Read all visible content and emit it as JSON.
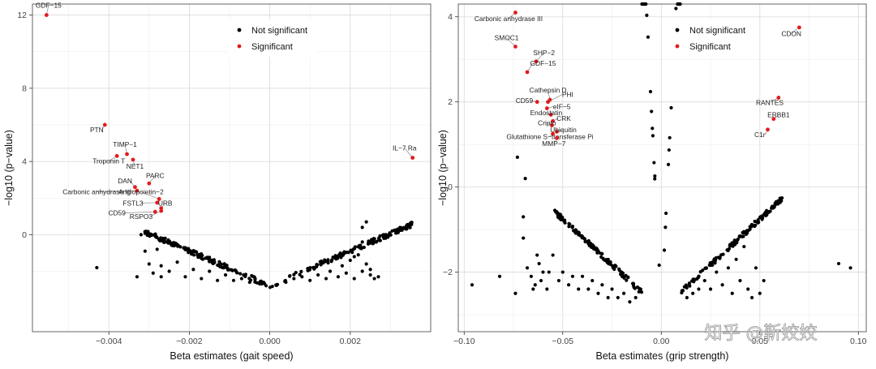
{
  "watermark": "知乎 @靳姣姣",
  "colors": {
    "not_significant": "#000000",
    "significant": "#e41a1c"
  },
  "chart_data": [
    {
      "type": "scatter",
      "subtype": "volcano",
      "xlabel": "Beta estimates (gait speed)",
      "ylabel": "−log10 (p−value)",
      "xlim": [
        -0.0059,
        0.004
      ],
      "ylim": [
        -5.3,
        12.6
      ],
      "xticks": [
        -0.004,
        -0.002,
        0.0,
        0.002
      ],
      "xtick_labels": [
        "−0.004",
        "−0.002",
        "0.000",
        "0.002"
      ],
      "yticks": [
        0,
        4,
        8,
        12
      ],
      "ytick_labels": [
        "0",
        "4",
        "8",
        "12"
      ],
      "legend": {
        "position": "top-center",
        "entries": [
          "Not significant",
          "Significant"
        ]
      },
      "arms": {
        "apex": [
          0.0,
          -2.8
        ],
        "coef": 950,
        "n": 280,
        "seed": 11
      },
      "scatter": [
        [
          -0.0043,
          -1.8
        ],
        [
          -0.0033,
          -2.3
        ],
        [
          -0.0032,
          0.0
        ],
        [
          -0.0031,
          -0.9
        ],
        [
          -0.003,
          -1.6
        ],
        [
          -0.0029,
          -2.1
        ],
        [
          -0.0028,
          -0.8
        ],
        [
          -0.0027,
          -1.7
        ],
        [
          -0.0027,
          -2.3
        ],
        [
          -0.0026,
          -0.2
        ],
        [
          -0.0025,
          -2.0
        ],
        [
          -0.0023,
          -1.5
        ],
        [
          -0.0021,
          -2.3
        ],
        [
          -0.0019,
          -1.9
        ],
        [
          -0.0017,
          -2.4
        ],
        [
          -0.0015,
          -2.0
        ],
        [
          -0.0013,
          -2.5
        ],
        [
          -0.0011,
          -2.2
        ],
        [
          -0.0009,
          -2.5
        ],
        [
          -0.0007,
          -2.4
        ],
        [
          -0.0005,
          -2.6
        ],
        [
          0.0004,
          -2.6
        ],
        [
          0.0006,
          -2.4
        ],
        [
          0.0008,
          -2.3
        ],
        [
          0.001,
          -2.5
        ],
        [
          0.0012,
          -2.2
        ],
        [
          0.0014,
          -2.4
        ],
        [
          0.0015,
          -2.0
        ],
        [
          0.0017,
          -2.3
        ],
        [
          0.0018,
          -1.7
        ],
        [
          0.0019,
          -2.1
        ],
        [
          0.002,
          -1.4
        ],
        [
          0.0021,
          -2.4
        ],
        [
          0.0022,
          -1.1
        ],
        [
          0.0023,
          -0.4
        ],
        [
          0.0023,
          0.4
        ],
        [
          0.0024,
          -1.6
        ],
        [
          0.0025,
          -2.2
        ],
        [
          0.0026,
          -2.4
        ],
        [
          0.0027,
          -2.3
        ],
        [
          0.0024,
          0.7
        ],
        [
          0.0025,
          -1.9
        ],
        [
          0.0023,
          -2.0
        ],
        [
          0.0021,
          -1.2
        ]
      ],
      "significant": [
        {
          "label": "GDF−15",
          "x": -0.00555,
          "y": 12.0,
          "lx": -0.0055,
          "ly": 12.4
        },
        {
          "label": "IL−7 Ra",
          "x": 0.00355,
          "y": 4.2,
          "lx": 0.00335,
          "ly": 4.6
        },
        {
          "label": "PTN",
          "x": -0.0041,
          "y": 6.0,
          "lx": -0.0043,
          "ly": 5.6
        },
        {
          "label": "TIMP−1",
          "x": -0.00355,
          "y": 4.4,
          "lx": -0.0036,
          "ly": 4.8
        },
        {
          "label": "Troponin T",
          "x": -0.0038,
          "y": 4.3,
          "lx": -0.004,
          "ly": 3.9
        },
        {
          "label": "NET1",
          "x": -0.0034,
          "y": 4.1,
          "lx": -0.00335,
          "ly": 3.6
        },
        {
          "label": "PARC",
          "x": -0.003,
          "y": 2.8,
          "lx": -0.00285,
          "ly": 3.1
        },
        {
          "label": "DAN",
          "x": -0.00335,
          "y": 2.6,
          "lx": -0.0036,
          "ly": 2.8
        },
        {
          "label": "Carbonic anhydrase III",
          "x": -0.0033,
          "y": 2.4,
          "lx": -0.0043,
          "ly": 2.2
        },
        {
          "label": "Angiopoietin−2",
          "x": -0.00275,
          "y": 1.95,
          "lx": -0.0032,
          "ly": 2.2
        },
        {
          "label": "FSTL3",
          "x": -0.0028,
          "y": 1.75,
          "lx": -0.0034,
          "ly": 1.6
        },
        {
          "label": "URB",
          "x": -0.0027,
          "y": 1.45,
          "lx": -0.0026,
          "ly": 1.6
        },
        {
          "label": "CD59",
          "x": -0.00285,
          "y": 1.25,
          "lx": -0.0038,
          "ly": 1.05
        },
        {
          "label": "RSPO3",
          "x": -0.0027,
          "y": 1.3,
          "lx": -0.0032,
          "ly": 0.85
        }
      ]
    },
    {
      "type": "scatter",
      "subtype": "volcano",
      "xlabel": "Beta estimates (grip strength)",
      "ylabel": "−log10 (p−value)",
      "xlim": [
        -0.103,
        0.104
      ],
      "ylim": [
        -3.4,
        4.3
      ],
      "xticks": [
        -0.1,
        -0.05,
        0.0,
        0.05,
        0.1
      ],
      "xtick_labels": [
        "−0.10",
        "−0.05",
        "0.00",
        "0.05",
        "0.10"
      ],
      "yticks": [
        -2,
        0,
        2,
        4
      ],
      "ytick_labels": [
        "−2",
        "0",
        "2",
        "4"
      ],
      "legend": {
        "position": "top-center",
        "entries": [
          "Not significant",
          "Significant"
        ]
      },
      "arms": {
        "apex": [
          0.0,
          -2.9
        ],
        "coef": 1100,
        "n": 300,
        "seed": 29
      },
      "scatter": [
        [
          -0.096,
          -2.3
        ],
        [
          -0.082,
          -2.1
        ],
        [
          -0.074,
          -2.5
        ],
        [
          -0.073,
          0.7
        ],
        [
          -0.07,
          -0.7
        ],
        [
          -0.07,
          -1.2
        ],
        [
          -0.069,
          0.2
        ],
        [
          -0.068,
          -1.9
        ],
        [
          -0.066,
          -2.1
        ],
        [
          -0.065,
          -2.4
        ],
        [
          -0.064,
          -2.3
        ],
        [
          -0.063,
          -1.6
        ],
        [
          -0.062,
          -1.8
        ],
        [
          -0.061,
          -2.2
        ],
        [
          -0.06,
          -2.0
        ],
        [
          -0.058,
          -2.4
        ],
        [
          -0.057,
          -2.0
        ],
        [
          -0.055,
          -1.6
        ],
        [
          -0.052,
          -2.2
        ],
        [
          -0.05,
          -2.0
        ],
        [
          -0.047,
          -2.3
        ],
        [
          -0.045,
          -2.1
        ],
        [
          -0.042,
          -2.4
        ],
        [
          -0.04,
          -2.1
        ],
        [
          -0.037,
          -2.4
        ],
        [
          -0.035,
          -2.2
        ],
        [
          -0.032,
          -2.5
        ],
        [
          -0.03,
          -2.3
        ],
        [
          -0.027,
          -2.6
        ],
        [
          -0.025,
          -2.4
        ],
        [
          -0.022,
          -2.6
        ],
        [
          -0.019,
          -2.5
        ],
        [
          -0.016,
          -2.7
        ],
        [
          -0.013,
          -2.6
        ],
        [
          0.013,
          -2.6
        ],
        [
          0.016,
          -2.5
        ],
        [
          0.019,
          -2.4
        ],
        [
          0.022,
          -2.2
        ],
        [
          0.025,
          -2.4
        ],
        [
          0.028,
          -2.0
        ],
        [
          0.031,
          -2.3
        ],
        [
          0.034,
          -1.9
        ],
        [
          0.036,
          -2.5
        ],
        [
          0.038,
          -1.7
        ],
        [
          0.04,
          -2.2
        ],
        [
          0.042,
          -1.4
        ],
        [
          0.044,
          -2.4
        ],
        [
          0.046,
          -2.6
        ],
        [
          0.048,
          -1.9
        ],
        [
          0.05,
          -2.5
        ],
        [
          0.052,
          -2.2
        ],
        [
          0.09,
          -1.8
        ],
        [
          0.096,
          -1.9
        ]
      ],
      "significant": [
        {
          "label": "Carbonic anhydrase III",
          "x": -0.074,
          "y": 4.1,
          "lx": -0.0775,
          "ly": 3.9
        },
        {
          "label": "SMOC1",
          "x": -0.074,
          "y": 3.3,
          "lx": -0.0785,
          "ly": 3.45
        },
        {
          "label": "SHP−2",
          "x": -0.0635,
          "y": 2.95,
          "lx": -0.0595,
          "ly": 3.1
        },
        {
          "label": "GDF−15",
          "x": -0.068,
          "y": 2.7,
          "lx": -0.06,
          "ly": 2.85
        },
        {
          "label": "CDON",
          "x": 0.07,
          "y": 3.75,
          "lx": 0.066,
          "ly": 3.55
        },
        {
          "label": "Cathepsin D",
          "x": -0.0565,
          "y": 2.05,
          "lx": -0.0575,
          "ly": 2.22
        },
        {
          "label": "PHI",
          "x": -0.0575,
          "y": 2.0,
          "lx": -0.0475,
          "ly": 2.12
        },
        {
          "label": "CD59",
          "x": -0.063,
          "y": 2.0,
          "lx": -0.0695,
          "ly": 1.97
        },
        {
          "label": "eIF−5",
          "x": -0.058,
          "y": 1.85,
          "lx": -0.0505,
          "ly": 1.83
        },
        {
          "label": "Endostatin",
          "x": -0.056,
          "y": 1.7,
          "lx": -0.0584,
          "ly": 1.69
        },
        {
          "label": "CRK",
          "x": -0.055,
          "y": 1.55,
          "lx": -0.0495,
          "ly": 1.56
        },
        {
          "label": "Cripto",
          "x": -0.0555,
          "y": 1.45,
          "lx": -0.058,
          "ly": 1.45
        },
        {
          "label": "Ubiquitin",
          "x": -0.053,
          "y": 1.3,
          "lx": -0.0497,
          "ly": 1.29
        },
        {
          "label": "Glutathione S−transferase Pi",
          "x": -0.055,
          "y": 1.25,
          "lx": -0.0565,
          "ly": 1.13
        },
        {
          "label": "MMP−7",
          "x": -0.053,
          "y": 1.15,
          "lx": -0.0545,
          "ly": 0.96
        },
        {
          "label": "RANTES",
          "x": 0.0595,
          "y": 2.1,
          "lx": 0.055,
          "ly": 1.93
        },
        {
          "label": "ERBB1",
          "x": 0.057,
          "y": 1.6,
          "lx": 0.0595,
          "ly": 1.64
        },
        {
          "label": "C1r",
          "x": 0.054,
          "y": 1.35,
          "lx": 0.05,
          "ly": 1.17
        }
      ]
    }
  ]
}
